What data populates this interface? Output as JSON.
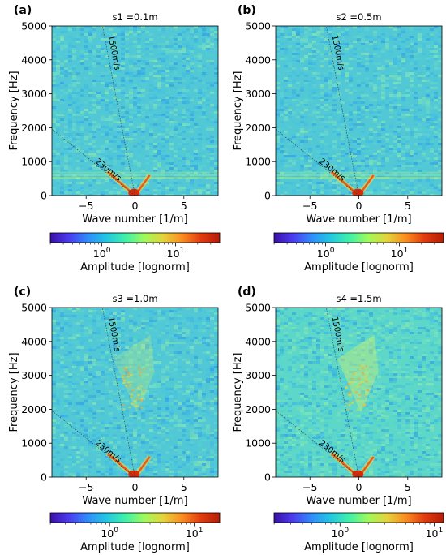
{
  "figure": {
    "shared": {
      "xlabel": "Wave number [1/m]",
      "ylabel": "Frequency [Hz]",
      "colorbar_label": "Amplitude [lognorm]",
      "colormap": [
        "#3b0fa8",
        "#4b3cf0",
        "#2f8dfb",
        "#22c7e3",
        "#3ff1a8",
        "#9ffa5a",
        "#e4d33a",
        "#fb8c20",
        "#e23b0e",
        "#b71c05"
      ],
      "xlim": [
        -8.5,
        8.5
      ],
      "ylim": [
        0,
        5000
      ],
      "xticks": [
        -5,
        0,
        5
      ],
      "yticks": [
        0,
        1000,
        2000,
        3000,
        4000,
        5000
      ]
    },
    "panels": [
      {
        "label": "(a)",
        "title": "s1 =0.1m",
        "speed_lines": [
          {
            "label": "1500m/s",
            "speed": 1500
          },
          {
            "label": "230m/s",
            "speed": 230
          }
        ],
        "colorbar": {
          "range_exp": [
            -0.7,
            1.6
          ],
          "ticks": [
            {
              "exp": 0,
              "label": "10",
              "sup": "0"
            },
            {
              "exp": 1,
              "label": "10",
              "sup": "1"
            }
          ]
        }
      },
      {
        "label": "(b)",
        "title": "s2 =0.5m",
        "speed_lines": [
          {
            "label": "1500m/s",
            "speed": 1500
          },
          {
            "label": "230m/s",
            "speed": 230
          }
        ],
        "colorbar": {
          "range_exp": [
            -0.7,
            1.6
          ],
          "ticks": [
            {
              "exp": 0,
              "label": "10",
              "sup": "0"
            },
            {
              "exp": 1,
              "label": "10",
              "sup": "1"
            }
          ]
        }
      },
      {
        "label": "(c)",
        "title": "s3 =1.0m",
        "speed_lines": [
          {
            "label": "1500m/s",
            "speed": 1500
          },
          {
            "label": "230m/s",
            "speed": 230
          }
        ],
        "colorbar": {
          "range_exp": [
            -0.7,
            1.3
          ],
          "ticks": [
            {
              "exp": 0,
              "label": "10",
              "sup": "0"
            },
            {
              "exp": 1,
              "label": "10",
              "sup": "1"
            }
          ]
        }
      },
      {
        "label": "(d)",
        "title": "s4 =1.5m",
        "speed_lines": [
          {
            "label": "1500m/s",
            "speed": 1500
          },
          {
            "label": "230m/s",
            "speed": 230
          }
        ],
        "colorbar": {
          "range_exp": [
            -0.7,
            1.1
          ],
          "ticks": [
            {
              "exp": 0,
              "label": "10",
              "sup": "0"
            },
            {
              "exp": 1,
              "label": "10",
              "sup": "1"
            }
          ]
        }
      }
    ]
  },
  "chart_data": [
    {
      "type": "heatmap",
      "title": "s1 =0.1m",
      "xlabel": "Wave number [1/m]",
      "ylabel": "Frequency [Hz]",
      "xlim": [
        -8.5,
        8.5
      ],
      "ylim": [
        0,
        5000
      ],
      "features": [
        {
          "label": "1500m/s",
          "slope_hz_per_inv_m": -1500
        },
        {
          "label": "230m/s",
          "slope_hz_per_inv_m": -230
        }
      ],
      "colorbar": {
        "label": "Amplitude [lognorm]",
        "scale": "log",
        "ticks": [
          "10^0",
          "10^1"
        ]
      }
    },
    {
      "type": "heatmap",
      "title": "s2 =0.5m",
      "xlabel": "Wave number [1/m]",
      "ylabel": "Frequency [Hz]",
      "xlim": [
        -8.5,
        8.5
      ],
      "ylim": [
        0,
        5000
      ],
      "features": [
        {
          "label": "1500m/s",
          "slope_hz_per_inv_m": -1500
        },
        {
          "label": "230m/s",
          "slope_hz_per_inv_m": -230
        }
      ],
      "colorbar": {
        "label": "Amplitude [lognorm]",
        "scale": "log",
        "ticks": [
          "10^0",
          "10^1"
        ]
      }
    },
    {
      "type": "heatmap",
      "title": "s3 =1.0m",
      "xlabel": "Wave number [1/m]",
      "ylabel": "Frequency [Hz]",
      "xlim": [
        -8.5,
        8.5
      ],
      "ylim": [
        0,
        5000
      ],
      "features": [
        {
          "label": "1500m/s",
          "slope_hz_per_inv_m": -1500
        },
        {
          "label": "230m/s",
          "slope_hz_per_inv_m": -230
        }
      ],
      "colorbar": {
        "label": "Amplitude [lognorm]",
        "scale": "log",
        "ticks": [
          "10^0",
          "10^1"
        ]
      }
    },
    {
      "type": "heatmap",
      "title": "s4 =1.5m",
      "xlabel": "Wave number [1/m]",
      "ylabel": "Frequency [Hz]",
      "xlim": [
        -8.5,
        8.5
      ],
      "ylim": [
        0,
        5000
      ],
      "features": [
        {
          "label": "1500m/s",
          "slope_hz_per_inv_m": -1500
        },
        {
          "label": "230m/s",
          "slope_hz_per_inv_m": -230
        }
      ],
      "colorbar": {
        "label": "Amplitude [lognorm]",
        "scale": "log",
        "ticks": [
          "10^0",
          "10^1"
        ]
      }
    }
  ]
}
